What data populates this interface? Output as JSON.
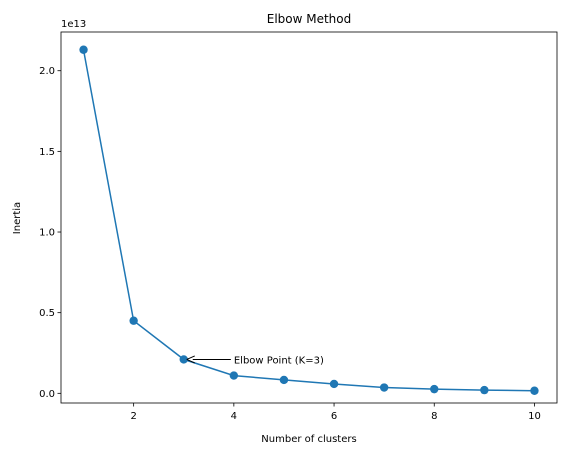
{
  "chart_data": {
    "type": "line",
    "title": "Elbow Method",
    "xlabel": "Number of clusters",
    "ylabel": "Inertia",
    "y_offset_label": "1e13",
    "x": [
      1,
      2,
      3,
      4,
      5,
      6,
      7,
      8,
      9,
      10
    ],
    "series": [
      {
        "values": [
          21300000000000.0,
          4500000000000.0,
          2100000000000.0,
          1100000000000.0,
          830000000000.0,
          580000000000.0,
          360000000000.0,
          260000000000.0,
          200000000000.0,
          160000000000.0
        ]
      }
    ],
    "xlim": [
      0.55,
      10.45
    ],
    "ylim": [
      -600000000000.0,
      22400000000000.0
    ],
    "xticks": [
      2,
      4,
      6,
      8,
      10
    ],
    "xtick_labels": [
      "2",
      "4",
      "6",
      "8",
      "10"
    ],
    "yticks": [
      0,
      5000000000000.0,
      10000000000000.0,
      15000000000000.0,
      20000000000000.0
    ],
    "ytick_labels": [
      "0.0",
      "0.5",
      "1.0",
      "1.5",
      "2.0"
    ],
    "annotation": {
      "text": "Elbow Point (K=3)",
      "x": 3,
      "y": 2100000000000.0,
      "text_x": 4,
      "text_y": 2100000000000.0
    },
    "grid": false,
    "line_color": "#1f77b4"
  }
}
